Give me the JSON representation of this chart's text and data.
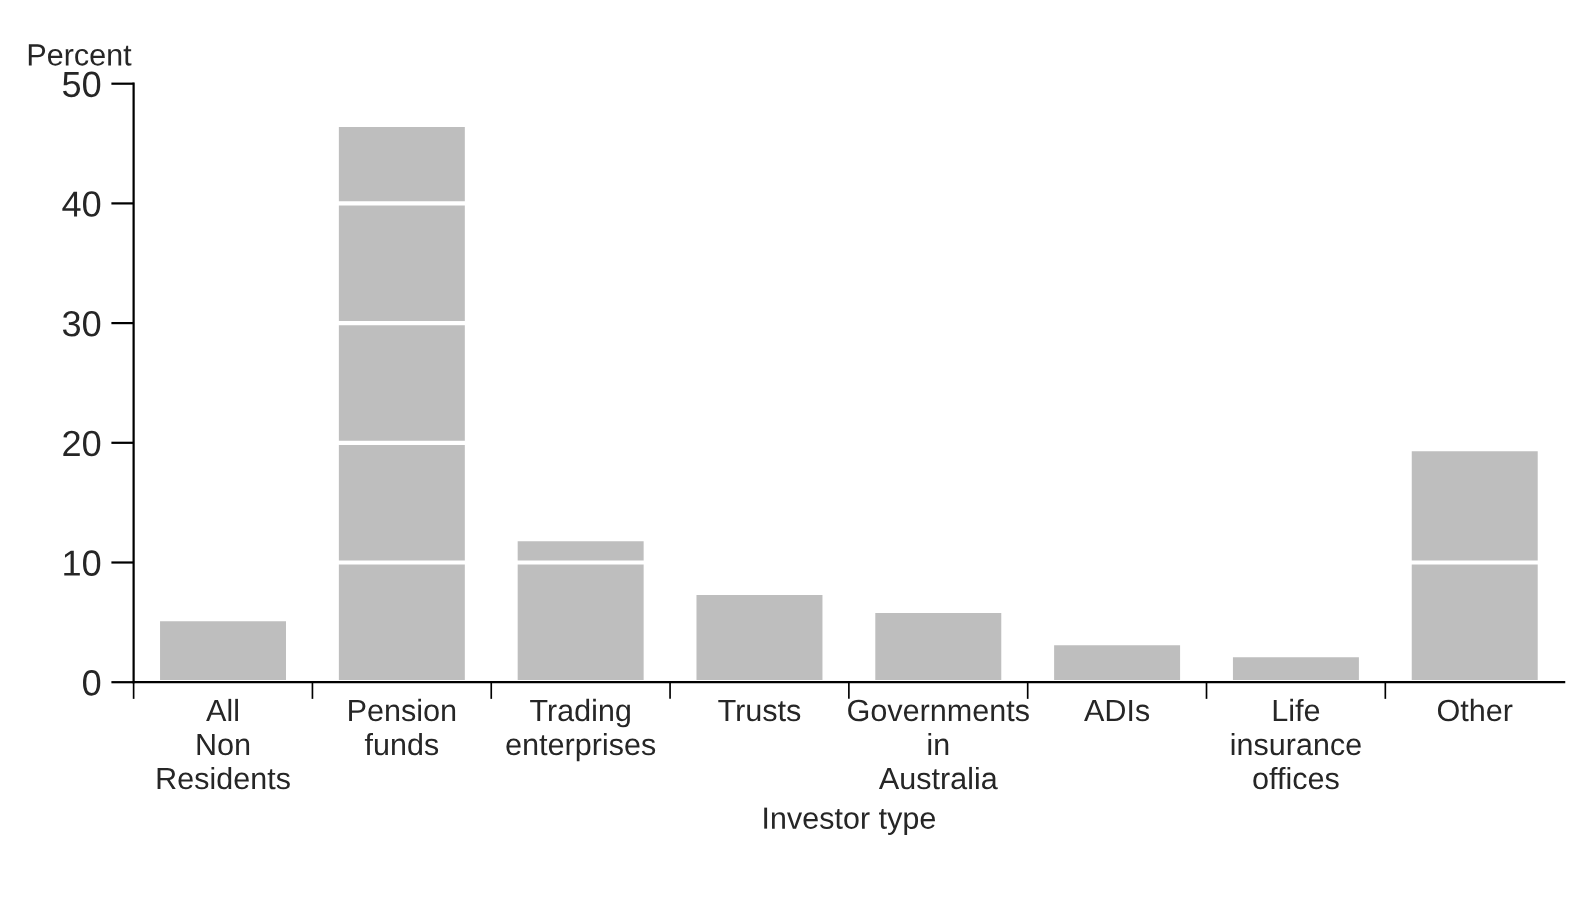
{
  "chart_data": {
    "type": "bar",
    "ylabel": "Percent",
    "xlabel": "Investor type",
    "categories": [
      "All\nNon\nResidents",
      "Pension\nfunds",
      "Trading\nenterprises",
      "Trusts",
      "Governments\nin\nAustralia",
      "ADIs",
      "Life\ninsurance\noffices",
      "Other"
    ],
    "values": [
      5.2,
      46.5,
      11.9,
      7.4,
      5.9,
      3.2,
      2.2,
      19.4
    ],
    "color": "#bebebe",
    "ylim": [
      0,
      50
    ],
    "yticks": [
      0,
      10,
      20,
      30,
      40,
      50
    ],
    "grid": "y"
  }
}
